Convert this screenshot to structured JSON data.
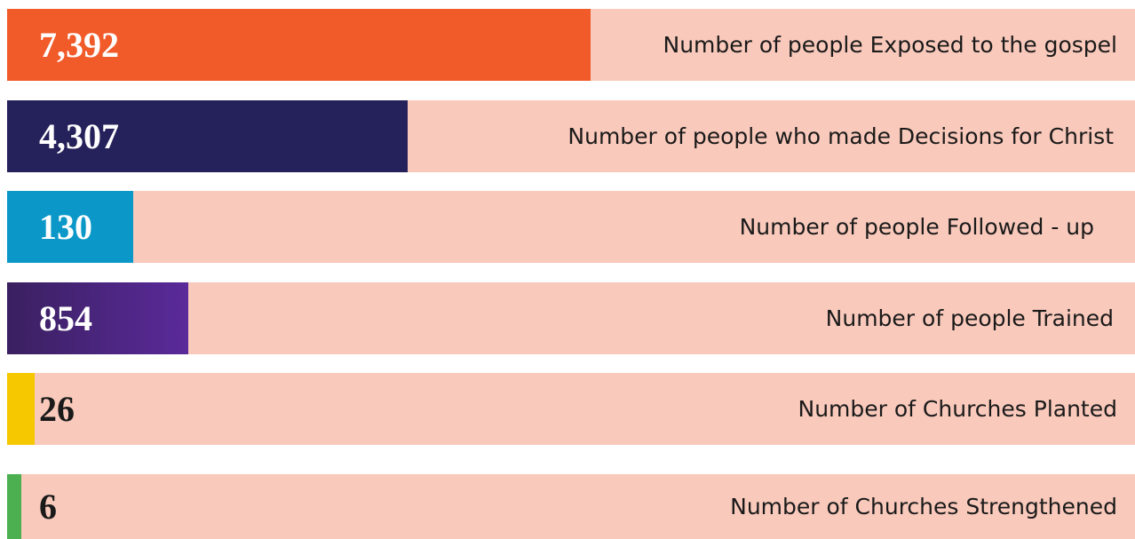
{
  "rows": [
    {
      "value": "7,392",
      "label": "Number of people Exposed to the gospel"
    },
    {
      "value": "4,307",
      "label": "Number of people who made Decisions for Christ"
    },
    {
      "value": "130",
      "label": "Number of people Followed - up"
    },
    {
      "value": "854",
      "label": "Number of people Trained"
    },
    {
      "value": "26",
      "label": "Number of Churches Planted"
    },
    {
      "value": "6",
      "label": "Number of Churches Strengthened"
    }
  ]
}
